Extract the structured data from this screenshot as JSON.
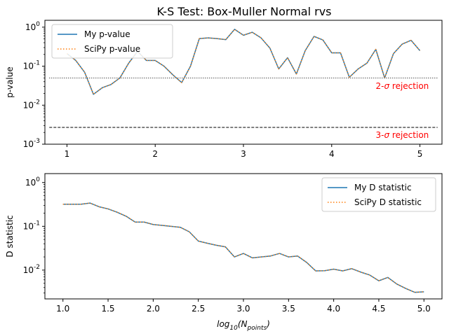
{
  "figure_title": "K-S Test: Box-Muller Normal rvs",
  "chart_data": [
    {
      "type": "line",
      "title": "K-S Test: Box-Muller Normal rvs",
      "xlabel": "",
      "ylabel": "p-value",
      "yscale": "log",
      "xlim": [
        0.75,
        5.25
      ],
      "ylim": [
        0.001,
        1.5
      ],
      "x_ticks": [
        1,
        2,
        3,
        4,
        5
      ],
      "x_tick_labels": [
        "1",
        "2",
        "3",
        "4",
        "5"
      ],
      "y_ticks": [
        0.001,
        0.01,
        0.1,
        1
      ],
      "y_tick_labels": [
        "10^-3",
        "10^-2",
        "10^-1",
        "10^0"
      ],
      "grid": false,
      "legend_position": "upper-left",
      "x": [
        1.0,
        1.1,
        1.2,
        1.3,
        1.4,
        1.5,
        1.6,
        1.7,
        1.8,
        1.9,
        2.0,
        2.1,
        2.2,
        2.3,
        2.4,
        2.5,
        2.6,
        2.7,
        2.8,
        2.9,
        3.0,
        3.1,
        3.2,
        3.3,
        3.4,
        3.5,
        3.6,
        3.7,
        3.8,
        3.9,
        4.0,
        4.1,
        4.2,
        4.3,
        4.4,
        4.5,
        4.6,
        4.7,
        4.8,
        4.9,
        5.0
      ],
      "series": [
        {
          "name": "My p-value",
          "color": "#1f77b4",
          "style": "solid",
          "values": [
            0.21,
            0.14,
            0.07,
            0.019,
            0.028,
            0.034,
            0.05,
            0.12,
            0.24,
            0.14,
            0.14,
            0.1,
            0.06,
            0.038,
            0.1,
            0.51,
            0.53,
            0.51,
            0.48,
            0.88,
            0.62,
            0.74,
            0.53,
            0.29,
            0.085,
            0.165,
            0.063,
            0.25,
            0.58,
            0.47,
            0.22,
            0.22,
            0.052,
            0.085,
            0.12,
            0.27,
            0.05,
            0.21,
            0.37,
            0.46,
            0.25
          ]
        },
        {
          "name": "SciPy p-value",
          "color": "#ff7f0e",
          "style": "dotted",
          "values": [
            0.21,
            0.14,
            0.07,
            0.019,
            0.028,
            0.034,
            0.05,
            0.12,
            0.24,
            0.14,
            0.14,
            0.1,
            0.06,
            0.038,
            0.1,
            0.51,
            0.53,
            0.51,
            0.48,
            0.88,
            0.62,
            0.74,
            0.53,
            0.29,
            0.085,
            0.165,
            0.063,
            0.25,
            0.58,
            0.47,
            0.22,
            0.22,
            0.052,
            0.085,
            0.12,
            0.27,
            0.05,
            0.21,
            0.37,
            0.46,
            0.25
          ]
        }
      ],
      "reference_lines": [
        {
          "y": 0.05,
          "x_range": [
            0.8,
            5.2
          ],
          "style": "dotted",
          "color": "#000000",
          "label": "2-σ rejection",
          "label_color": "#ff0000",
          "label_x": 4.8,
          "label_y": 0.031
        },
        {
          "y": 0.0027,
          "x_range": [
            0.8,
            5.2
          ],
          "style": "dashed",
          "color": "#000000",
          "label": "3-σ rejection",
          "label_color": "#ff0000",
          "label_x": 4.8,
          "label_y": 0.0017
        }
      ]
    },
    {
      "type": "line",
      "title": "",
      "xlabel": "log10(N_points)",
      "ylabel": "D statistic",
      "yscale": "log",
      "xlim": [
        0.8,
        5.2
      ],
      "ylim": [
        0.0022,
        1.6
      ],
      "x_ticks": [
        1.0,
        1.5,
        2.0,
        2.5,
        3.0,
        3.5,
        4.0,
        4.5,
        5.0
      ],
      "x_tick_labels": [
        "1.0",
        "1.5",
        "2.0",
        "2.5",
        "3.0",
        "3.5",
        "4.0",
        "4.5",
        "5.0"
      ],
      "y_ticks": [
        0.01,
        0.1,
        1
      ],
      "y_tick_labels": [
        "10^-2",
        "10^-1",
        "10^0"
      ],
      "grid": false,
      "legend_position": "upper-right",
      "x": [
        1.0,
        1.1,
        1.2,
        1.3,
        1.4,
        1.5,
        1.6,
        1.7,
        1.8,
        1.9,
        2.0,
        2.1,
        2.2,
        2.3,
        2.4,
        2.5,
        2.6,
        2.7,
        2.8,
        2.9,
        3.0,
        3.1,
        3.2,
        3.3,
        3.4,
        3.5,
        3.6,
        3.7,
        3.8,
        3.9,
        4.0,
        4.1,
        4.2,
        4.3,
        4.4,
        4.5,
        4.6,
        4.7,
        4.8,
        4.9,
        5.0
      ],
      "series": [
        {
          "name": "My D statistic",
          "color": "#1f77b4",
          "style": "solid",
          "values": [
            0.32,
            0.32,
            0.32,
            0.34,
            0.28,
            0.25,
            0.21,
            0.17,
            0.125,
            0.125,
            0.11,
            0.105,
            0.1,
            0.095,
            0.075,
            0.046,
            0.041,
            0.037,
            0.034,
            0.02,
            0.024,
            0.019,
            0.02,
            0.021,
            0.024,
            0.02,
            0.021,
            0.015,
            0.0096,
            0.0097,
            0.0105,
            0.0096,
            0.0108,
            0.009,
            0.0077,
            0.0057,
            0.0068,
            0.0048,
            0.0038,
            0.0031,
            0.0032
          ]
        },
        {
          "name": "SciPy D statistic",
          "color": "#ff7f0e",
          "style": "dotted",
          "values": [
            0.32,
            0.32,
            0.32,
            0.34,
            0.28,
            0.25,
            0.21,
            0.17,
            0.125,
            0.125,
            0.11,
            0.105,
            0.1,
            0.095,
            0.075,
            0.046,
            0.041,
            0.037,
            0.034,
            0.02,
            0.024,
            0.019,
            0.02,
            0.021,
            0.024,
            0.02,
            0.021,
            0.015,
            0.0096,
            0.0097,
            0.0105,
            0.0096,
            0.0108,
            0.009,
            0.0077,
            0.0057,
            0.0068,
            0.0048,
            0.0038,
            0.0031,
            0.0032
          ]
        }
      ]
    }
  ]
}
